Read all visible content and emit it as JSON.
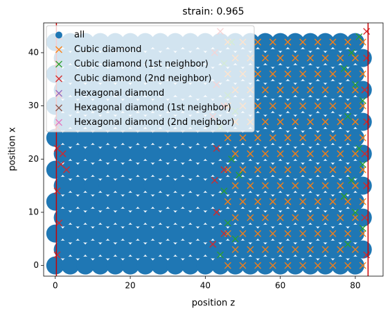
{
  "chart_data": {
    "type": "scatter",
    "title": "strain: 0.965",
    "x_label": "position z",
    "y_label": "position x",
    "xlim": [
      -3.1,
      87.4
    ],
    "ylim": [
      -2.0,
      45.6
    ],
    "xticks": [
      0,
      20,
      40,
      60,
      80
    ],
    "yticks": [
      0,
      10,
      20,
      30,
      40
    ],
    "legend": "upper left",
    "vlines": [
      0.3,
      83.4
    ],
    "vline_color": "#cc0000",
    "series": [
      {
        "name": "all",
        "color": "#1f77b4",
        "marker": "o",
        "x": [
          0,
          4,
          8,
          12,
          16,
          20,
          24,
          28,
          32,
          36,
          40,
          44,
          48,
          52,
          56,
          60,
          64,
          68,
          72,
          76,
          80,
          2,
          6,
          10,
          14,
          18,
          22,
          26,
          30,
          34,
          38,
          42,
          46,
          50,
          54,
          58,
          62,
          66,
          70,
          74,
          78,
          82,
          0,
          4,
          8,
          12,
          16,
          20,
          24,
          28,
          32,
          36,
          40,
          44,
          48,
          52,
          56,
          60,
          64,
          68,
          72,
          76,
          80,
          2,
          6,
          10,
          14,
          18,
          22,
          26,
          30,
          34,
          38,
          42,
          46,
          50,
          54,
          58,
          62,
          66,
          70,
          74,
          78,
          82,
          0,
          4,
          8,
          12,
          16,
          20,
          24,
          28,
          32,
          36,
          40,
          44,
          48,
          52,
          56,
          60,
          64,
          68,
          72,
          76,
          80,
          2,
          6,
          10,
          14,
          18,
          22,
          26,
          30,
          34,
          38,
          42,
          46,
          50,
          54,
          58,
          62,
          66,
          70,
          74,
          78,
          82,
          0,
          4,
          8,
          12,
          16,
          20,
          24,
          28,
          32,
          36,
          40,
          44,
          48,
          52,
          56,
          60,
          64,
          68,
          72,
          76,
          80,
          2,
          6,
          10,
          14,
          18,
          22,
          26,
          30,
          34,
          38,
          42,
          46,
          50,
          54,
          58,
          62,
          66,
          70,
          74,
          78,
          82,
          0,
          4,
          8,
          12,
          16,
          20,
          24,
          28,
          32,
          36,
          40,
          44,
          48,
          52,
          56,
          60,
          64,
          68,
          72,
          76,
          80,
          2,
          6,
          10,
          14,
          18,
          22,
          26,
          30,
          34,
          38,
          42,
          46,
          50,
          54,
          58,
          62,
          66,
          70,
          74,
          78,
          82,
          0,
          4,
          8,
          12,
          16,
          20,
          24,
          28,
          32,
          36,
          40,
          44,
          48,
          52,
          56,
          60,
          64,
          68,
          72,
          76,
          80,
          2,
          6,
          10,
          14,
          18,
          22,
          26,
          30,
          34,
          38,
          42,
          46,
          50,
          54,
          58,
          62,
          66,
          70,
          74,
          78,
          82,
          0,
          4,
          8,
          12,
          16,
          20,
          24,
          28,
          32,
          36,
          40,
          44,
          48,
          52,
          56,
          60,
          64,
          68,
          72,
          76,
          80,
          2,
          6,
          10,
          14,
          18,
          22,
          26,
          30,
          34,
          38,
          42,
          46,
          50,
          54,
          58,
          62,
          66,
          70,
          74,
          78,
          82,
          0,
          4,
          8,
          12,
          16,
          20,
          24,
          28,
          32,
          36,
          40,
          44,
          48,
          52,
          56,
          60,
          64,
          68,
          72,
          76,
          80
        ],
        "values": [
          0,
          0,
          0,
          0,
          0,
          0,
          0,
          0,
          0,
          0,
          0,
          0,
          0,
          0,
          0,
          0,
          0,
          0,
          0,
          0,
          0,
          3,
          3,
          3,
          3,
          3,
          3,
          3,
          3,
          3,
          3,
          3,
          3,
          3,
          3,
          3,
          3,
          3,
          3,
          3,
          3,
          3,
          6,
          6,
          6,
          6,
          6,
          6,
          6,
          6,
          6,
          6,
          6,
          6,
          6,
          6,
          6,
          6,
          6,
          6,
          6,
          6,
          6,
          9,
          9,
          9,
          9,
          9,
          9,
          9,
          9,
          9,
          9,
          9,
          9,
          9,
          9,
          9,
          9,
          9,
          9,
          9,
          9,
          9,
          12,
          12,
          12,
          12,
          12,
          12,
          12,
          12,
          12,
          12,
          12,
          12,
          12,
          12,
          12,
          12,
          12,
          12,
          12,
          12,
          12,
          15,
          15,
          15,
          15,
          15,
          15,
          15,
          15,
          15,
          15,
          15,
          15,
          15,
          15,
          15,
          15,
          15,
          15,
          15,
          15,
          15,
          18,
          18,
          18,
          18,
          18,
          18,
          18,
          18,
          18,
          18,
          18,
          18,
          18,
          18,
          18,
          18,
          18,
          18,
          18,
          18,
          18,
          21,
          21,
          21,
          21,
          21,
          21,
          21,
          21,
          21,
          21,
          21,
          21,
          21,
          21,
          21,
          21,
          21,
          21,
          21,
          21,
          21,
          24,
          24,
          24,
          24,
          24,
          24,
          24,
          24,
          24,
          24,
          24,
          24,
          24,
          24,
          24,
          24,
          24,
          24,
          24,
          24,
          24,
          27,
          27,
          27,
          27,
          27,
          27,
          27,
          27,
          27,
          27,
          27,
          27,
          27,
          27,
          27,
          27,
          27,
          27,
          27,
          27,
          27,
          30,
          30,
          30,
          30,
          30,
          30,
          30,
          30,
          30,
          30,
          30,
          30,
          30,
          30,
          30,
          30,
          30,
          30,
          30,
          30,
          30,
          33,
          33,
          33,
          33,
          33,
          33,
          33,
          33,
          33,
          33,
          33,
          33,
          33,
          33,
          33,
          33,
          33,
          33,
          33,
          33,
          33,
          36,
          36,
          36,
          36,
          36,
          36,
          36,
          36,
          36,
          36,
          36,
          36,
          36,
          36,
          36,
          36,
          36,
          36,
          36,
          36,
          36,
          39,
          39,
          39,
          39,
          39,
          39,
          39,
          39,
          39,
          39,
          39,
          39,
          39,
          39,
          39,
          39,
          39,
          39,
          39,
          39,
          39,
          42,
          42,
          42,
          42,
          42,
          42,
          42,
          42,
          42,
          42,
          42,
          42,
          42,
          42,
          42,
          42,
          42,
          42,
          42,
          42,
          42
        ]
      },
      {
        "name": "Cubic diamond",
        "color": "#ff7f0e",
        "marker": "x",
        "x": [
          46,
          50,
          54,
          58,
          62,
          66,
          70,
          74,
          78,
          82,
          48,
          52,
          56,
          60,
          64,
          68,
          72,
          76,
          80,
          46,
          50,
          54,
          58,
          62,
          66,
          70,
          74,
          78,
          82,
          48,
          52,
          56,
          60,
          64,
          68,
          72,
          76,
          80,
          46,
          50,
          54,
          58,
          62,
          66,
          70,
          74,
          78,
          82,
          48,
          52,
          56,
          60,
          64,
          68,
          72,
          76,
          80,
          46,
          50,
          54,
          58,
          62,
          66,
          70,
          74,
          78,
          82,
          48,
          52,
          56,
          60,
          64,
          68,
          72,
          76,
          80,
          46,
          50,
          54,
          58,
          62,
          66,
          70,
          74,
          78,
          82,
          48,
          52,
          56,
          60,
          64,
          68,
          72,
          76,
          80,
          46,
          50,
          54,
          58,
          62,
          66,
          70,
          74,
          78,
          82,
          48,
          52,
          56,
          60,
          64,
          68,
          72,
          76,
          80,
          46,
          50,
          54,
          58,
          62,
          66,
          70,
          74,
          78,
          82,
          48,
          52,
          56,
          60,
          64,
          68,
          72,
          76,
          80,
          46,
          50,
          54,
          58,
          62,
          66,
          70,
          74,
          78,
          82
        ],
        "values": [
          0,
          0,
          0,
          0,
          0,
          0,
          0,
          0,
          0,
          0,
          3,
          3,
          3,
          3,
          3,
          3,
          3,
          3,
          3,
          6,
          6,
          6,
          6,
          6,
          6,
          6,
          6,
          6,
          6,
          9,
          9,
          9,
          9,
          9,
          9,
          9,
          9,
          9,
          12,
          12,
          12,
          12,
          12,
          12,
          12,
          12,
          12,
          12,
          15,
          15,
          15,
          15,
          15,
          15,
          15,
          15,
          15,
          18,
          18,
          18,
          18,
          18,
          18,
          18,
          18,
          18,
          18,
          21,
          21,
          21,
          21,
          21,
          21,
          21,
          21,
          21,
          24,
          24,
          24,
          24,
          24,
          24,
          24,
          24,
          24,
          24,
          27,
          27,
          27,
          27,
          27,
          27,
          27,
          27,
          27,
          30,
          30,
          30,
          30,
          30,
          30,
          30,
          30,
          30,
          30,
          33,
          33,
          33,
          33,
          33,
          33,
          33,
          33,
          33,
          36,
          36,
          36,
          36,
          36,
          36,
          36,
          36,
          36,
          36,
          39,
          39,
          39,
          39,
          39,
          39,
          39,
          39,
          39,
          42,
          42,
          42,
          42,
          42,
          42,
          42,
          42,
          42,
          42
        ]
      },
      {
        "name": "Cubic diamond (1st neighbor)",
        "color": "#2ca02c",
        "marker": "x",
        "x": [
          44,
          46,
          45,
          47,
          44,
          46,
          45,
          47,
          48,
          49,
          48,
          78,
          80,
          79,
          81,
          78,
          80,
          79,
          81,
          82,
          82,
          82,
          77,
          77
        ],
        "values": [
          2,
          8,
          14,
          20,
          26,
          32,
          38,
          42,
          5,
          17,
          29,
          4,
          10,
          16,
          22,
          28,
          34,
          40,
          43,
          7,
          19,
          31,
          13,
          37
        ]
      },
      {
        "name": "Cubic diamond (2nd neighbor)",
        "color": "#d62728",
        "marker": "x",
        "x": [
          0.5,
          1,
          0.5,
          1.5,
          0.5,
          2,
          0.5,
          1,
          0.5,
          1,
          3,
          42,
          43,
          42.5,
          43,
          42,
          43,
          42.5,
          44,
          45,
          45,
          45,
          83,
          82.5,
          83,
          82.5,
          83,
          82.5,
          83,
          83
        ],
        "values": [
          2,
          8,
          14,
          19,
          22,
          21,
          26,
          32,
          38,
          43,
          18,
          4,
          10,
          16,
          22,
          28,
          34,
          40,
          44,
          6,
          18,
          30,
          2,
          9,
          15,
          21,
          27,
          33,
          39,
          44
        ]
      },
      {
        "name": "Hexagonal diamond",
        "color": "#9467bd",
        "marker": "x",
        "x": [],
        "values": []
      },
      {
        "name": "Hexagonal diamond (1st neighbor)",
        "color": "#8c564b",
        "marker": "x",
        "x": [],
        "values": []
      },
      {
        "name": "Hexagonal diamond (2nd neighbor)",
        "color": "#e377c2",
        "marker": "x",
        "x": [],
        "values": []
      }
    ]
  }
}
